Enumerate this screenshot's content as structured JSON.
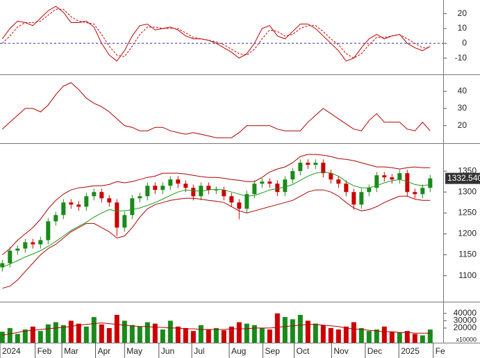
{
  "chart_data": [
    {
      "type": "line",
      "xlim": [
        -0.3,
        57.7
      ],
      "ylim": [
        -21,
        28.8
      ],
      "yticks": [
        20,
        10,
        0,
        -10
      ],
      "hline": 0,
      "hline_color": "#2233aa",
      "series": [
        {
          "color": "#c00000",
          "values": [
            3,
            10,
            15,
            14,
            12,
            17,
            22,
            25,
            21,
            14,
            14,
            15,
            11,
            0,
            -8,
            -12,
            -5,
            5,
            12,
            13,
            9,
            10,
            11,
            9,
            5,
            3,
            3,
            2,
            0,
            -3,
            -6,
            -10,
            -7,
            0,
            10,
            12,
            5,
            3,
            8,
            13,
            13,
            10,
            5,
            0,
            -5,
            -12,
            -10,
            -3,
            3,
            6,
            3,
            5,
            6,
            0,
            -3,
            -5,
            -2
          ]
        },
        {
          "color": "#c00000",
          "dashed": true,
          "values": [
            0,
            5,
            11,
            14,
            14,
            15,
            19,
            23,
            23,
            18,
            15,
            14,
            13,
            6,
            -2,
            -8,
            -9,
            -2,
            6,
            11,
            11,
            10,
            10,
            10,
            7,
            4,
            3,
            2,
            1,
            -1,
            -4,
            -7,
            -8,
            -4,
            3,
            9,
            8,
            5,
            6,
            10,
            12,
            12,
            8,
            3,
            -1,
            -7,
            -10,
            -7,
            -1,
            4,
            4,
            5,
            6,
            3,
            0,
            -3,
            -3
          ]
        }
      ]
    },
    {
      "type": "line",
      "xlim": [
        -0.3,
        57.7
      ],
      "ylim": [
        9.8,
        49.4
      ],
      "yticks": [
        40,
        30,
        20
      ],
      "series": [
        {
          "color": "#b00000",
          "values": [
            18,
            22,
            26,
            30,
            30,
            28,
            32,
            38,
            43,
            45,
            41,
            36,
            33,
            31,
            28,
            24,
            20,
            19,
            17,
            17,
            19,
            19,
            17,
            16,
            15,
            16,
            15,
            14,
            13,
            13,
            13,
            16,
            20,
            20,
            20,
            20,
            18,
            17,
            17,
            17,
            22,
            26,
            30,
            27,
            24,
            21,
            18,
            17,
            23,
            27,
            22,
            22,
            22,
            18,
            17,
            22,
            17
          ]
        }
      ]
    },
    {
      "type": "candlestick",
      "xlim": [
        -0.3,
        57.7
      ],
      "ylim": [
        1038,
        1415
      ],
      "yticks": [
        1100,
        1150,
        1200,
        1250,
        1300,
        1350
      ],
      "up_color": "#1a8a1a",
      "down_color": "#cc0000",
      "open": [
        1120,
        1130,
        1160,
        1165,
        1180,
        1175,
        1185,
        1230,
        1245,
        1275,
        1270,
        1265,
        1290,
        1300,
        1285,
        1275,
        1215,
        1245,
        1285,
        1290,
        1315,
        1305,
        1315,
        1330,
        1320,
        1310,
        1290,
        1315,
        1305,
        1305,
        1290,
        1275,
        1260,
        1295,
        1320,
        1325,
        1320,
        1300,
        1330,
        1350,
        1370,
        1365,
        1370,
        1345,
        1330,
        1320,
        1300,
        1270,
        1300,
        1310,
        1340,
        1335,
        1330,
        1345,
        1300,
        1295,
        1310
      ],
      "high": [
        1138,
        1168,
        1173,
        1188,
        1188,
        1193,
        1238,
        1253,
        1283,
        1283,
        1278,
        1298,
        1308,
        1308,
        1293,
        1283,
        1253,
        1293,
        1298,
        1323,
        1323,
        1323,
        1338,
        1338,
        1328,
        1318,
        1323,
        1323,
        1313,
        1313,
        1298,
        1283,
        1303,
        1328,
        1333,
        1333,
        1328,
        1338,
        1358,
        1378,
        1378,
        1378,
        1378,
        1353,
        1338,
        1328,
        1308,
        1308,
        1318,
        1348,
        1348,
        1343,
        1353,
        1353,
        1308,
        1318,
        1341
      ],
      "low": [
        1110,
        1120,
        1150,
        1155,
        1165,
        1165,
        1175,
        1220,
        1235,
        1260,
        1255,
        1255,
        1280,
        1275,
        1265,
        1195,
        1205,
        1235,
        1275,
        1280,
        1295,
        1295,
        1305,
        1310,
        1300,
        1280,
        1280,
        1295,
        1295,
        1280,
        1265,
        1235,
        1250,
        1285,
        1310,
        1310,
        1290,
        1290,
        1320,
        1340,
        1355,
        1355,
        1335,
        1320,
        1310,
        1290,
        1258,
        1260,
        1290,
        1300,
        1325,
        1320,
        1320,
        1290,
        1285,
        1285,
        1300
      ],
      "close": [
        1130,
        1160,
        1165,
        1180,
        1175,
        1185,
        1230,
        1245,
        1275,
        1270,
        1265,
        1290,
        1300,
        1285,
        1275,
        1215,
        1245,
        1285,
        1290,
        1315,
        1305,
        1315,
        1330,
        1320,
        1310,
        1290,
        1315,
        1305,
        1305,
        1290,
        1275,
        1260,
        1295,
        1320,
        1325,
        1320,
        1300,
        1330,
        1350,
        1370,
        1365,
        1370,
        1345,
        1330,
        1320,
        1300,
        1270,
        1300,
        1310,
        1340,
        1335,
        1330,
        1345,
        1300,
        1295,
        1310,
        1332.54
      ],
      "last_label": {
        "value": 1332.54,
        "label": "1332.540"
      },
      "series": [
        {
          "color": "#1a9a1a",
          "values": [
            1120,
            1128,
            1136,
            1145,
            1152,
            1160,
            1170,
            1182,
            1195,
            1208,
            1218,
            1228,
            1240,
            1250,
            1258,
            1255,
            1255,
            1258,
            1262,
            1268,
            1275,
            1283,
            1292,
            1300,
            1305,
            1303,
            1302,
            1305,
            1307,
            1305,
            1300,
            1295,
            1290,
            1292,
            1298,
            1305,
            1308,
            1312,
            1318,
            1328,
            1338,
            1345,
            1348,
            1345,
            1338,
            1325,
            1315,
            1310,
            1310,
            1315,
            1322,
            1327,
            1330,
            1325,
            1318,
            1315,
            1318
          ]
        },
        {
          "color": "#b00000",
          "values": [
            1150,
            1165,
            1185,
            1200,
            1215,
            1235,
            1260,
            1280,
            1295,
            1305,
            1310,
            1312,
            1315,
            1315,
            1318,
            1325,
            1322,
            1325,
            1330,
            1335,
            1338,
            1345,
            1345,
            1345,
            1343,
            1340,
            1337,
            1335,
            1335,
            1333,
            1330,
            1328,
            1325,
            1325,
            1335,
            1348,
            1355,
            1360,
            1370,
            1385,
            1390,
            1390,
            1388,
            1385,
            1380,
            1378,
            1375,
            1370,
            1365,
            1360,
            1360,
            1358,
            1355,
            1358,
            1360,
            1358,
            1358
          ]
        },
        {
          "color": "#b00000",
          "values": [
            1070,
            1075,
            1090,
            1110,
            1130,
            1150,
            1165,
            1175,
            1190,
            1205,
            1215,
            1225,
            1225,
            1215,
            1205,
            1190,
            1195,
            1215,
            1240,
            1260,
            1270,
            1275,
            1280,
            1283,
            1285,
            1285,
            1283,
            1280,
            1278,
            1275,
            1265,
            1255,
            1250,
            1255,
            1260,
            1265,
            1270,
            1275,
            1280,
            1290,
            1300,
            1305,
            1305,
            1300,
            1290,
            1275,
            1262,
            1255,
            1258,
            1265,
            1275,
            1283,
            1290,
            1290,
            1283,
            1280,
            1280
          ]
        }
      ]
    },
    {
      "type": "bar",
      "xlim": [
        -0.3,
        57.7
      ],
      "ylim": [
        0,
        55000
      ],
      "yticks": [
        40000,
        30000,
        20000
      ],
      "unit_label": "x10000",
      "values": [
        15000,
        20000,
        12000,
        18000,
        22000,
        16000,
        25000,
        28000,
        24000,
        30000,
        26000,
        22000,
        35000,
        25000,
        20000,
        38000,
        30000,
        24000,
        22000,
        28000,
        26000,
        18000,
        30000,
        22000,
        20000,
        16000,
        24000,
        18000,
        20000,
        17000,
        22000,
        28000,
        26000,
        24000,
        20000,
        18000,
        40000,
        35000,
        32000,
        38000,
        30000,
        26000,
        24000,
        20000,
        18000,
        22000,
        28000,
        20000,
        16000,
        18000,
        22000,
        15000,
        14000,
        16000,
        12000,
        10000,
        18000
      ],
      "series": [
        {
          "color": "#b00000",
          "values": [
            10000,
            12000,
            14000,
            16000,
            17000,
            18000,
            19000,
            20000,
            21000,
            22000,
            24000,
            25000,
            26000,
            27000,
            26000,
            25000,
            24000,
            23000,
            22000,
            22000,
            21000,
            21000,
            20000,
            20000,
            19000,
            19000,
            18000,
            18000,
            18000,
            18000,
            19000,
            19000,
            19000,
            20000,
            20000,
            20000,
            21000,
            22000,
            23000,
            24000,
            25000,
            25000,
            24000,
            23000,
            22000,
            20000,
            19000,
            18000,
            17000,
            16000,
            15000,
            15000,
            14000,
            14000,
            13000,
            13000,
            13000
          ]
        }
      ],
      "xticks": [
        {
          "value": -0.3,
          "label": "2024"
        },
        {
          "value": 4.3,
          "label": "Feb"
        },
        {
          "value": 7.8,
          "label": "Mar"
        },
        {
          "value": 12.2,
          "label": "Apr"
        },
        {
          "value": 16,
          "label": "May"
        },
        {
          "value": 20.5,
          "label": "Jun"
        },
        {
          "value": 24.8,
          "label": "Jul"
        },
        {
          "value": 29.7,
          "label": "Aug"
        },
        {
          "value": 34.1,
          "label": "Sep"
        },
        {
          "value": 38.2,
          "label": "Oct"
        },
        {
          "value": 43.1,
          "label": "Nov"
        },
        {
          "value": 47.5,
          "label": "Dec"
        },
        {
          "value": 51.9,
          "label": "2025"
        },
        {
          "value": 56.4,
          "label": "Fe"
        }
      ]
    }
  ]
}
